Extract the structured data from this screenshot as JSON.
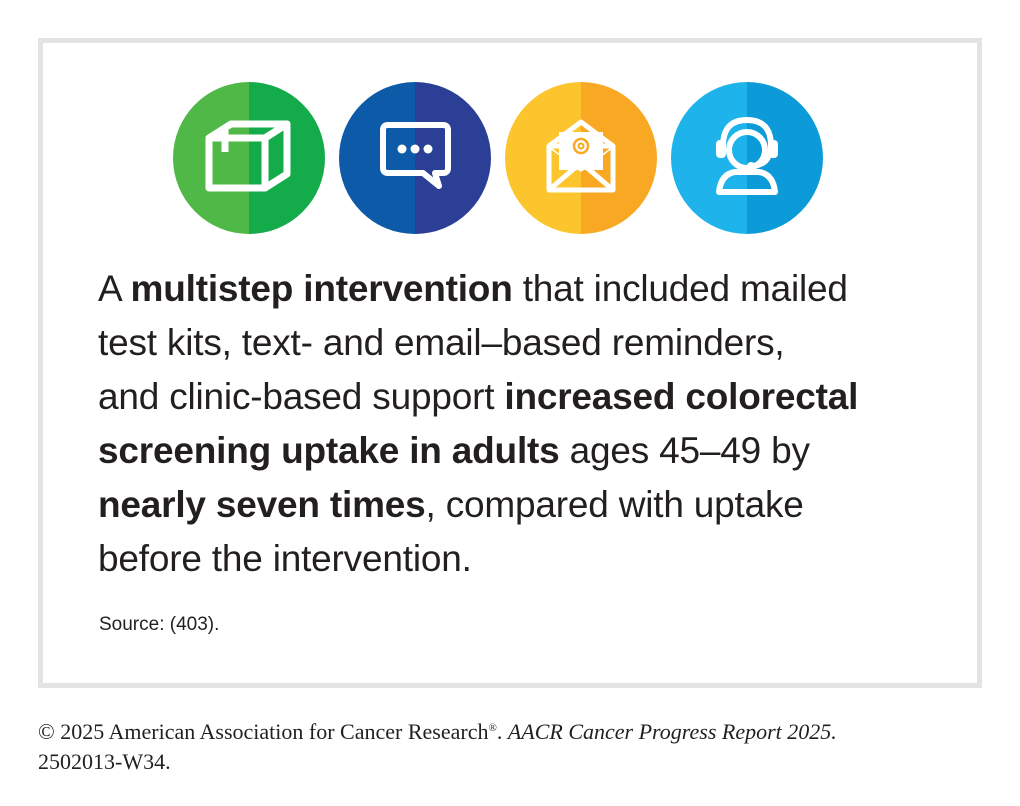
{
  "icons": [
    {
      "name": "package-icon",
      "color_left": "#4fb847",
      "color_right": "#14ab4b"
    },
    {
      "name": "chat-message-icon",
      "color_left": "#0d5aa8",
      "color_right": "#2a3f95"
    },
    {
      "name": "email-envelope-icon",
      "color_left": "#fcc42d",
      "color_right": "#f8a823"
    },
    {
      "name": "support-headset-icon",
      "color_left": "#1eb4eb",
      "color_right": "#0c9ad8"
    }
  ],
  "main": {
    "line1_a": "A ",
    "line1_b": "multistep intervention",
    "line1_c": " that included mailed",
    "line2": "test kits, text- and email–based reminders,",
    "line3_a": "and clinic-based support ",
    "line3_b": "increased colorectal",
    "line4_a": "screening uptake in adults",
    "line4_b": " ages 45–49 by",
    "line5_a": "nearly seven times",
    "line5_b": ", compared with uptake",
    "line6": "before the intervention."
  },
  "source": "Source: (403).",
  "footer": {
    "copyright": "© 2025 American Association for Cancer Research",
    "registered": "®",
    "period": ". ",
    "report": "AACR Cancer Progress Report 2025.",
    "code": "2502013-W34."
  }
}
